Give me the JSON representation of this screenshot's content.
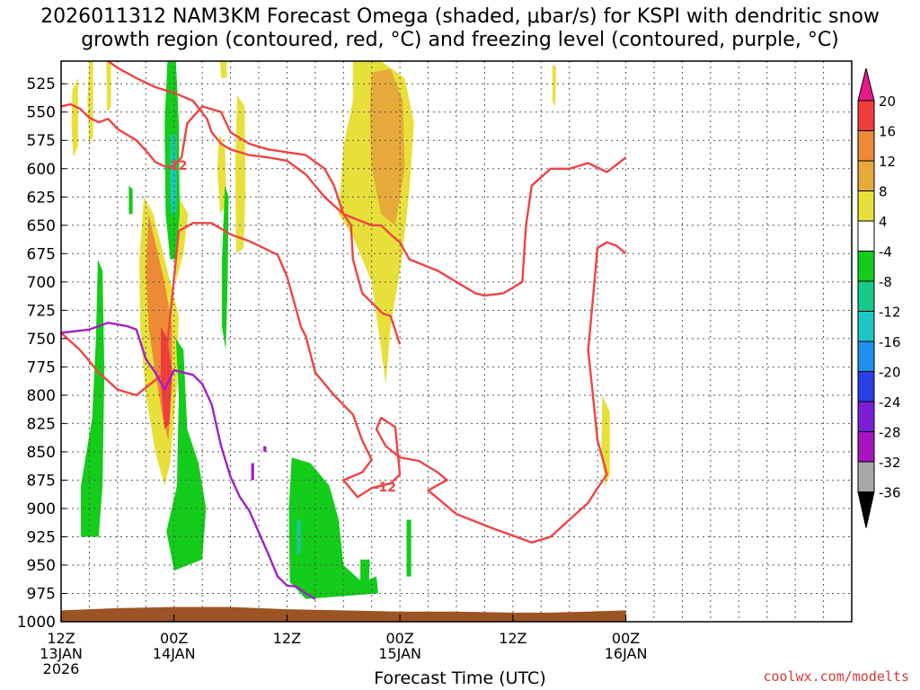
{
  "title_line1": "2026011312 NAM3KM Forecast Omega (shaded, μbar/s) for KSPI with dendritic snow",
  "title_line2": "growth region (contoured, red, °C) and freezing level (contoured, purple, °C)",
  "credit": "coolwx.com/modelts",
  "chart_data": {
    "type": "time-height cross section",
    "title": "2026011312 NAM3KM Forecast Omega (shaded, μbar/s) for KSPI with dendritic snow growth region (contoured, red, °C) and freezing level (contoured, purple, °C)",
    "xlabel": "Forecast Time (UTC)",
    "ylabel": "",
    "x_range_hours": [
      0,
      84
    ],
    "y_range_hpa": [
      1000,
      505
    ],
    "y_ticks": [
      525,
      550,
      575,
      600,
      625,
      650,
      675,
      700,
      725,
      750,
      775,
      800,
      825,
      850,
      875,
      900,
      925,
      950,
      975,
      1000
    ],
    "x_ticks": [
      {
        "hour": 0,
        "line1": "12Z",
        "line2": "13JAN",
        "line3": "2026"
      },
      {
        "hour": 12,
        "line1": "00Z",
        "line2": "14JAN",
        "line3": ""
      },
      {
        "hour": 24,
        "line1": "12Z",
        "line2": "",
        "line3": ""
      },
      {
        "hour": 36,
        "line1": "00Z",
        "line2": "15JAN",
        "line3": ""
      },
      {
        "hour": 48,
        "line1": "12Z",
        "line2": "",
        "line3": ""
      },
      {
        "hour": 60,
        "line1": "00Z",
        "line2": "16JAN",
        "line3": ""
      }
    ],
    "colorbar": {
      "labels": [
        "20",
        "16",
        "12",
        "8",
        "4",
        "-4",
        "-8",
        "-12",
        "-16",
        "-20",
        "-24",
        "-28",
        "-32",
        "-36"
      ],
      "levels": [
        {
          "range": "> 20",
          "color": "#e8198b"
        },
        {
          "range": "16 to 20",
          "color": "#f03c3c"
        },
        {
          "range": "12 to 16",
          "color": "#ed8a35"
        },
        {
          "range": "8 to 12",
          "color": "#e6a93a"
        },
        {
          "range": "4 to 8",
          "color": "#e8e03a"
        },
        {
          "range": "-4 to 4",
          "color": "#ffffff"
        },
        {
          "range": "-8 to -4",
          "color": "#14cc1a"
        },
        {
          "range": "-12 to -8",
          "color": "#18c98a"
        },
        {
          "range": "-16 to -12",
          "color": "#1ec6c6"
        },
        {
          "range": "-20 to -16",
          "color": "#1e90f0"
        },
        {
          "range": "-24 to -20",
          "color": "#2b3fe6"
        },
        {
          "range": "-28 to -24",
          "color": "#7a1fd6"
        },
        {
          "range": "-32 to -28",
          "color": "#a815c0"
        },
        {
          "range": "-36 to -32",
          "color": "#a8a8a8"
        },
        {
          "range": "< -36",
          "color": "#000000"
        }
      ]
    },
    "contour_labels": [
      {
        "text": "-12",
        "hour": 12.2,
        "hpa": 597
      },
      {
        "text": "-12",
        "hour": 34.4,
        "hpa": 881
      }
    ],
    "series": [
      {
        "name": "dendritic snow growth region boundary (-12 °C)",
        "color": "#ee4444",
        "points": [
          [
            0,
            545
          ],
          [
            1,
            543
          ],
          [
            2,
            547
          ],
          [
            3,
            555
          ],
          [
            4,
            559
          ],
          [
            5,
            556
          ],
          [
            6,
            565
          ],
          [
            8,
            575
          ],
          [
            9,
            584
          ],
          [
            10,
            594
          ],
          [
            11,
            598
          ],
          [
            12,
            598
          ],
          [
            12.8,
            590
          ],
          [
            13.4,
            560
          ],
          [
            15,
            545
          ],
          [
            17,
            550
          ],
          [
            18,
            568
          ],
          [
            20,
            578
          ],
          [
            22,
            583
          ],
          [
            26,
            588
          ],
          [
            28,
            600
          ],
          [
            29,
            615
          ],
          [
            30,
            640
          ],
          [
            30.8,
            650
          ],
          [
            31,
            680
          ],
          [
            32,
            710
          ],
          [
            34.2,
            728
          ],
          [
            35,
            730
          ],
          [
            36,
            755
          ]
        ]
      },
      {
        "name": "dendritic snow growth region boundary (-12 °C), upper",
        "color": "#ee4444",
        "points": [
          [
            5,
            505
          ],
          [
            6,
            511
          ],
          [
            8,
            520
          ],
          [
            10,
            528
          ],
          [
            12,
            533
          ],
          [
            14,
            540
          ],
          [
            15.5,
            556
          ],
          [
            16,
            568
          ],
          [
            17,
            578
          ],
          [
            18,
            583
          ],
          [
            20,
            588
          ],
          [
            22,
            590
          ],
          [
            24,
            593
          ],
          [
            26,
            605
          ],
          [
            28,
            625
          ],
          [
            30,
            640
          ],
          [
            33,
            650
          ],
          [
            34,
            650
          ],
          [
            35,
            658
          ],
          [
            36,
            665
          ],
          [
            37,
            680
          ],
          [
            40,
            690
          ],
          [
            44,
            710
          ],
          [
            45,
            712
          ],
          [
            47,
            710
          ],
          [
            49,
            700
          ],
          [
            49.4,
            650
          ],
          [
            50,
            615
          ],
          [
            52,
            600
          ],
          [
            54,
            600
          ],
          [
            56,
            595
          ],
          [
            58,
            603
          ],
          [
            60,
            590
          ]
        ]
      },
      {
        "name": "dendritic snow growth region boundary (-12 °C), mid",
        "color": "#ee4444",
        "points": [
          [
            0,
            745
          ],
          [
            2,
            760
          ],
          [
            4,
            780
          ],
          [
            6,
            795
          ],
          [
            8,
            800
          ],
          [
            11,
            780
          ],
          [
            12.5,
            655
          ],
          [
            14,
            648
          ],
          [
            16,
            648
          ],
          [
            18,
            658
          ],
          [
            20,
            664
          ],
          [
            23,
            676
          ],
          [
            24,
            695
          ],
          [
            25.5,
            740
          ],
          [
            26,
            748
          ],
          [
            27,
            780
          ],
          [
            29,
            800
          ],
          [
            31,
            817
          ],
          [
            32,
            840
          ],
          [
            33,
            857
          ],
          [
            32,
            868
          ],
          [
            30,
            875
          ],
          [
            31.5,
            890
          ],
          [
            33,
            882
          ],
          [
            35,
            878
          ],
          [
            36,
            870
          ],
          [
            35.5,
            828
          ],
          [
            34,
            820
          ],
          [
            33.5,
            830
          ],
          [
            34.5,
            845
          ],
          [
            36,
            855
          ],
          [
            38,
            858
          ],
          [
            40,
            868
          ],
          [
            41,
            875
          ],
          [
            39,
            884
          ],
          [
            42,
            905
          ],
          [
            46,
            918
          ],
          [
            50,
            930
          ],
          [
            52,
            925
          ],
          [
            54,
            910
          ],
          [
            56,
            895
          ],
          [
            57,
            882
          ],
          [
            58,
            870
          ],
          [
            57,
            840
          ],
          [
            56,
            760
          ],
          [
            57,
            670
          ],
          [
            58,
            665
          ],
          [
            59,
            668
          ],
          [
            60,
            675
          ]
        ]
      },
      {
        "name": "freezing level (0 °C)",
        "color": "#a020c8",
        "points": [
          [
            0,
            745
          ],
          [
            3,
            742
          ],
          [
            5,
            736
          ],
          [
            7,
            739
          ],
          [
            8,
            742
          ],
          [
            9,
            768
          ],
          [
            10,
            780
          ],
          [
            11,
            795
          ],
          [
            12,
            778
          ],
          [
            14,
            782
          ],
          [
            15,
            790
          ],
          [
            16,
            808
          ],
          [
            17,
            845
          ],
          [
            18,
            872
          ],
          [
            19,
            890
          ],
          [
            20,
            902
          ],
          [
            22,
            940
          ],
          [
            23,
            960
          ],
          [
            24,
            968
          ],
          [
            25,
            969
          ],
          [
            26,
            975
          ],
          [
            27,
            980
          ]
        ]
      },
      {
        "name": "omega contour patches (approximate)",
        "color": "#14cc1a",
        "points": [
          [
            3,
            710
          ],
          [
            3.5,
            700
          ],
          [
            4,
            720
          ],
          [
            4.5,
            780
          ],
          [
            4,
            880
          ],
          [
            3,
            900
          ],
          [
            2.5,
            905
          ],
          [
            2,
            880
          ]
        ]
      }
    ]
  }
}
